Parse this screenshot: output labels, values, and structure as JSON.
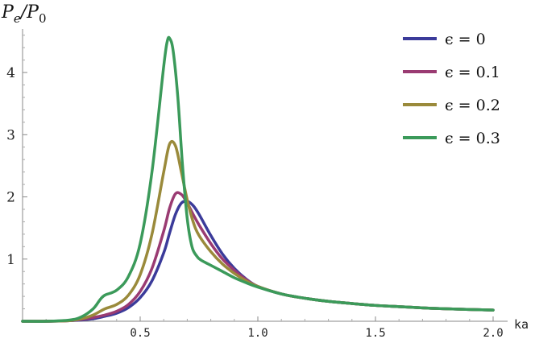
{
  "chart_data": {
    "type": "line",
    "title": "",
    "xlabel": "ka",
    "ylabel_main": "P",
    "ylabel_sub": "e",
    "ylabel_den_main": "P",
    "ylabel_den_sub": "0",
    "xlim": [
      0,
      2.0
    ],
    "ylim": [
      0,
      4.7
    ],
    "xticks": [
      0.5,
      1.0,
      1.5,
      2.0
    ],
    "xtick_labels": [
      "0.5",
      "1.0",
      "1.5",
      "2.0"
    ],
    "yticks": [
      1,
      2,
      3,
      4
    ],
    "ytick_labels": [
      "1",
      "2",
      "3",
      "4"
    ],
    "grid": false,
    "legend_position": "top-right",
    "series": [
      {
        "name": "ϵ = 0",
        "color": "#3b3b9a",
        "x": [
          0.0,
          0.1,
          0.2,
          0.25,
          0.3,
          0.35,
          0.4,
          0.45,
          0.5,
          0.55,
          0.6,
          0.625,
          0.65,
          0.675,
          0.7,
          0.725,
          0.75,
          0.8,
          0.85,
          0.9,
          0.95,
          1.0,
          1.1,
          1.2,
          1.3,
          1.4,
          1.5,
          1.6,
          1.7,
          1.8,
          1.9,
          2.0
        ],
        "y": [
          0.0,
          0.0,
          0.01,
          0.02,
          0.04,
          0.08,
          0.13,
          0.22,
          0.38,
          0.65,
          1.1,
          1.42,
          1.72,
          1.9,
          1.93,
          1.86,
          1.72,
          1.38,
          1.08,
          0.85,
          0.68,
          0.56,
          0.44,
          0.37,
          0.32,
          0.285,
          0.255,
          0.235,
          0.215,
          0.2,
          0.19,
          0.18
        ]
      },
      {
        "name": "ϵ = 0.1",
        "color": "#9a3b72",
        "x": [
          0.0,
          0.1,
          0.2,
          0.25,
          0.3,
          0.35,
          0.4,
          0.45,
          0.5,
          0.55,
          0.6,
          0.625,
          0.65,
          0.675,
          0.7,
          0.725,
          0.75,
          0.8,
          0.85,
          0.9,
          0.95,
          1.0,
          1.1,
          1.2,
          1.3,
          1.4,
          1.5,
          1.6,
          1.7,
          1.8,
          1.9,
          2.0
        ],
        "y": [
          0.0,
          0.0,
          0.01,
          0.03,
          0.06,
          0.1,
          0.16,
          0.27,
          0.48,
          0.85,
          1.45,
          1.82,
          2.05,
          2.04,
          1.9,
          1.72,
          1.55,
          1.25,
          1.0,
          0.82,
          0.67,
          0.56,
          0.44,
          0.37,
          0.32,
          0.285,
          0.255,
          0.235,
          0.215,
          0.2,
          0.19,
          0.18
        ]
      },
      {
        "name": "ϵ = 0.2",
        "color": "#9a8a3b",
        "x": [
          0.0,
          0.1,
          0.2,
          0.25,
          0.3,
          0.35,
          0.4,
          0.45,
          0.5,
          0.55,
          0.6,
          0.625,
          0.65,
          0.675,
          0.7,
          0.725,
          0.75,
          0.8,
          0.85,
          0.9,
          0.95,
          1.0,
          1.1,
          1.2,
          1.3,
          1.4,
          1.5,
          1.6,
          1.7,
          1.8,
          1.9,
          2.0
        ],
        "y": [
          0.0,
          0.0,
          0.01,
          0.04,
          0.1,
          0.2,
          0.27,
          0.42,
          0.75,
          1.4,
          2.4,
          2.85,
          2.82,
          2.4,
          1.95,
          1.6,
          1.38,
          1.12,
          0.92,
          0.77,
          0.65,
          0.56,
          0.44,
          0.37,
          0.32,
          0.285,
          0.255,
          0.235,
          0.215,
          0.2,
          0.19,
          0.18
        ]
      },
      {
        "name": "ϵ = 0.3",
        "color": "#3b9a5a",
        "x": [
          0.0,
          0.1,
          0.2,
          0.25,
          0.3,
          0.33,
          0.35,
          0.4,
          0.45,
          0.5,
          0.55,
          0.6,
          0.615,
          0.625,
          0.64,
          0.66,
          0.68,
          0.7,
          0.72,
          0.74,
          0.76,
          0.8,
          0.85,
          0.9,
          0.95,
          1.0,
          1.1,
          1.2,
          1.3,
          1.4,
          1.5,
          1.6,
          1.7,
          1.8,
          1.9,
          2.0
        ],
        "y": [
          0.0,
          0.0,
          0.02,
          0.07,
          0.2,
          0.35,
          0.42,
          0.5,
          0.72,
          1.25,
          2.4,
          4.1,
          4.5,
          4.55,
          4.35,
          3.6,
          2.5,
          1.65,
          1.2,
          1.05,
          0.98,
          0.9,
          0.8,
          0.7,
          0.62,
          0.55,
          0.44,
          0.37,
          0.32,
          0.285,
          0.255,
          0.235,
          0.215,
          0.2,
          0.19,
          0.18
        ]
      }
    ]
  }
}
